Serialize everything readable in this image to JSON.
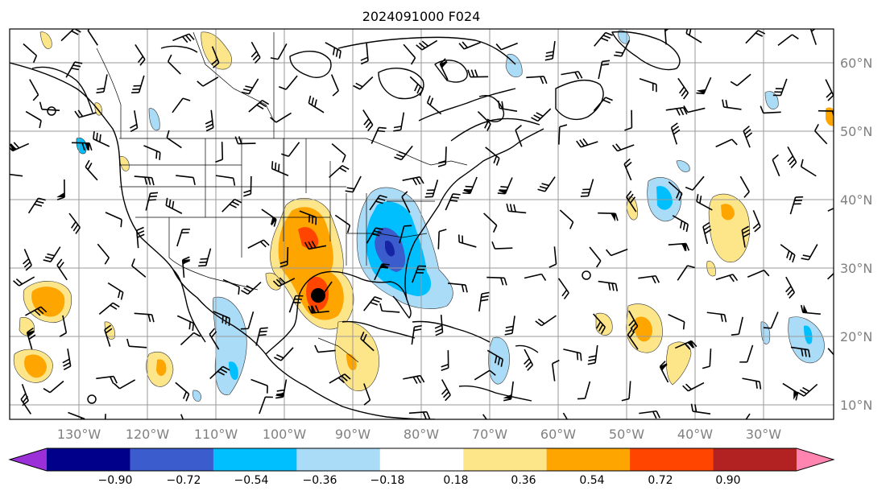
{
  "title": "2024091000 F024",
  "map": {
    "lon_labels": [
      "130°W",
      "120°W",
      "110°W",
      "100°W",
      "90°W",
      "80°W",
      "70°W",
      "60°W",
      "50°W",
      "40°W",
      "30°W"
    ],
    "lat_labels": [
      "60°N",
      "50°N",
      "40°N",
      "30°N",
      "20°N",
      "10°N"
    ],
    "lon_range": [
      -140,
      -20
    ],
    "lat_range": [
      8,
      65
    ],
    "grid_color": "#9a9a9a",
    "marker": {
      "lon": -95,
      "lat": 26,
      "color": "#000000"
    }
  },
  "colorbar": {
    "levels": [
      "−0.90",
      "−0.72",
      "−0.54",
      "−0.36",
      "−0.18",
      "0.18",
      "0.36",
      "0.54",
      "0.72",
      "0.90"
    ],
    "colors": [
      "#9b30d9",
      "#00008b",
      "#3a5ccc",
      "#00bfff",
      "#aadcf8",
      "#ffffff",
      "#fde68a",
      "#ffa500",
      "#ff4500",
      "#b22222",
      "#ff85b0"
    ]
  }
}
